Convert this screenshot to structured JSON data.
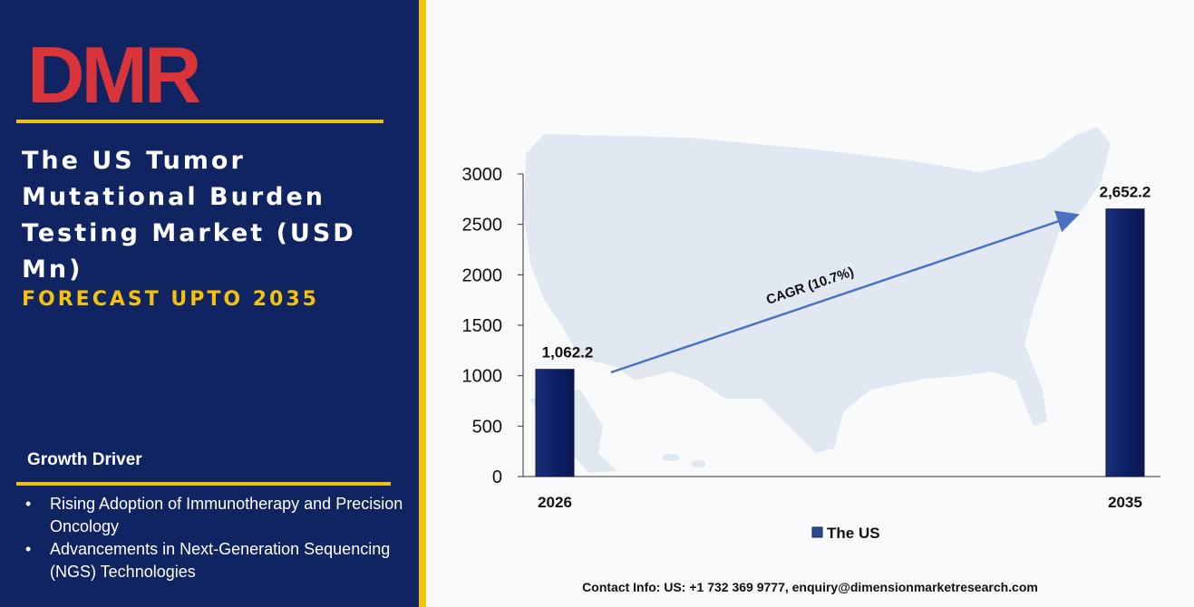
{
  "brand": {
    "logo_text": "DMR"
  },
  "sidebar": {
    "title": "The US Tumor Mutational Burden Testing Market (USD Mn)",
    "subtitle": "FORECAST UPTO 2035",
    "growth_driver_heading": "Growth Driver",
    "drivers": [
      "Rising Adoption of Immunotherapy and Precision Oncology",
      "Advancements in Next-Generation Sequencing (NGS) Technologies"
    ],
    "bullet_symbol": "•"
  },
  "colors": {
    "navy": "#0f2460",
    "gold": "#f4c20d",
    "bar": "#0d1f66",
    "arrow": "#4a72c4"
  },
  "chart_data": {
    "type": "bar",
    "categories": [
      "2026",
      "2035"
    ],
    "series": [
      {
        "name": "The US",
        "values": [
          1062.2,
          2652.2
        ]
      }
    ],
    "data_labels": [
      "1,062.2",
      "2,652.2"
    ],
    "ylim": [
      0,
      3000
    ],
    "yticks": [
      0,
      500,
      1000,
      1500,
      2000,
      2500,
      3000
    ],
    "annotation": "CAGR (10.7%)",
    "legend": "bottom",
    "grid": false,
    "background": "US map silhouette"
  },
  "footer": {
    "contact": "Contact Info: US: +1 732 369 9777, enquiry@dimensionmarketresearch.com"
  }
}
